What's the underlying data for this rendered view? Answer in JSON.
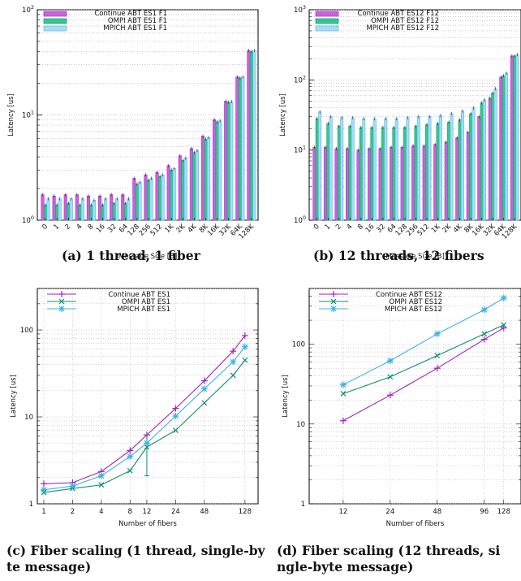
{
  "chart_data": [
    {
      "type": "bar",
      "caption": "(a) 1 thread, 1 fiber",
      "ylabel": "Latency [us]",
      "xlabel": "Message Size [B]",
      "yscale": "log",
      "ylim": [
        1,
        100
      ],
      "yticks": [
        {
          "value": 1,
          "base": "10",
          "exp": "0"
        },
        {
          "value": 10,
          "base": "10",
          "exp": "1"
        },
        {
          "value": 100,
          "base": "10",
          "exp": "2"
        }
      ],
      "categories": [
        "0",
        "1",
        "2",
        "4",
        "8",
        "16",
        "32",
        "64",
        "128",
        "256",
        "512",
        "1K",
        "2K",
        "4K",
        "8K",
        "16K",
        "32K",
        "64K",
        "128K"
      ],
      "colors": [
        "#a53ac7",
        "#1a9e6e",
        "#5bb8e6"
      ],
      "fills": [
        "#cf5fdf",
        "#36c78e",
        "#a8dcf5"
      ],
      "series": [
        {
          "name": "Continue ABT ES1 F1",
          "values": [
            1.75,
            1.7,
            1.75,
            1.75,
            1.7,
            1.7,
            1.75,
            1.75,
            2.5,
            2.7,
            2.85,
            3.3,
            4.1,
            4.8,
            6.3,
            9.0,
            13.5,
            23.0,
            41.0
          ]
        },
        {
          "name": "OMPI ABT ES1 F1",
          "values": [
            1.4,
            1.4,
            1.45,
            1.4,
            1.4,
            1.4,
            1.45,
            1.45,
            2.2,
            2.4,
            2.6,
            3.0,
            3.7,
            4.4,
            5.9,
            8.6,
            13.2,
            22.5,
            40.0
          ]
        },
        {
          "name": "MPICH ABT ES1 F1",
          "values": [
            1.6,
            1.6,
            1.6,
            1.6,
            1.55,
            1.6,
            1.6,
            1.6,
            2.3,
            2.5,
            2.7,
            3.1,
            3.9,
            4.6,
            6.1,
            8.8,
            13.4,
            23.0,
            41.0
          ]
        }
      ]
    },
    {
      "type": "bar",
      "caption": "(b) 12 threads, 12 fibers",
      "ylabel": "Latency [us]",
      "xlabel": "Message Size [B]",
      "yscale": "log",
      "ylim": [
        1,
        1000
      ],
      "yticks": [
        {
          "value": 1,
          "base": "10",
          "exp": "0"
        },
        {
          "value": 10,
          "base": "10",
          "exp": "1"
        },
        {
          "value": 100,
          "base": "10",
          "exp": "2"
        },
        {
          "value": 1000,
          "base": "10",
          "exp": "3"
        }
      ],
      "categories": [
        "0",
        "1",
        "2",
        "4",
        "8",
        "16",
        "32",
        "64",
        "128",
        "256",
        "512",
        "1K",
        "2K",
        "4K",
        "8K",
        "16K",
        "32K",
        "64K",
        "128K"
      ],
      "colors": [
        "#a53ac7",
        "#1a9e6e",
        "#5bb8e6"
      ],
      "fills": [
        "#cf5fdf",
        "#36c78e",
        "#a8dcf5"
      ],
      "series": [
        {
          "name": "Continue ABT ES12 F12",
          "values": [
            11,
            11,
            10.5,
            10.5,
            10,
            10.5,
            10.5,
            11,
            11,
            11.5,
            11.5,
            12,
            13,
            15,
            18,
            30,
            55,
            110,
            220
          ]
        },
        {
          "name": "OMPI ABT ES12 F12",
          "values": [
            28,
            24,
            22,
            22,
            21,
            21,
            21,
            21,
            21,
            22,
            23,
            24,
            25,
            27,
            33,
            47,
            65,
            115,
            220
          ]
        },
        {
          "name": "MPICH ABT ES12 F12",
          "values": [
            35,
            30,
            29,
            29,
            28,
            28,
            28,
            28,
            29,
            30,
            30,
            31,
            33,
            36,
            40,
            52,
            75,
            125,
            230
          ]
        }
      ]
    },
    {
      "type": "line",
      "caption": "(c) Fiber scaling (1 thread, single-byte message)",
      "ylabel": "Latency [us]",
      "xlabel": "Number of fibers",
      "yscale": "log",
      "xscale": "log2",
      "ylim": [
        1,
        300
      ],
      "xlim": [
        1,
        150
      ],
      "grid": true,
      "legend_position": "top-left",
      "xticks": [
        1,
        2,
        4,
        8,
        12,
        24,
        48,
        128
      ],
      "yticks": [
        {
          "value": 1,
          "label": "1"
        },
        {
          "value": 10,
          "label": "10"
        },
        {
          "value": 100,
          "label": "100"
        }
      ],
      "series": [
        {
          "name": "Continue ABT ES1",
          "color": "#a020c0",
          "marker": "+",
          "x": [
            1,
            2,
            4,
            8,
            12,
            24,
            48,
            96,
            128
          ],
          "y": [
            1.7,
            1.75,
            2.35,
            4.1,
            6.2,
            12.5,
            26,
            57,
            86
          ]
        },
        {
          "name": "OMPI ABT ES1",
          "color": "#0e8f6a",
          "marker": "x",
          "x": [
            1,
            2,
            4,
            8,
            12,
            24,
            48,
            96,
            128
          ],
          "y": [
            1.35,
            1.5,
            1.65,
            2.4,
            4.5,
            7,
            14.5,
            30,
            45
          ],
          "error_at": 12,
          "error_range": [
            2.1,
            6.5
          ]
        },
        {
          "name": "MPICH ABT ES1",
          "color": "#3db1e6",
          "marker": "*",
          "x": [
            1,
            2,
            4,
            8,
            12,
            24,
            48,
            96,
            128
          ],
          "y": [
            1.45,
            1.6,
            2.1,
            3.5,
            5,
            10.2,
            21,
            43,
            64
          ]
        }
      ]
    },
    {
      "type": "line",
      "caption": "(d) Fiber scaling (12 threads, single-byte message)",
      "ylabel": "Latency [us]",
      "xlabel": "Number of fibers",
      "yscale": "log",
      "xscale": "log2",
      "ylim": [
        1,
        500
      ],
      "xlim": [
        8,
        150
      ],
      "grid": true,
      "legend_position": "top-left",
      "xticks": [
        12,
        24,
        48,
        96,
        128
      ],
      "yticks": [
        {
          "value": 1,
          "label": "1"
        },
        {
          "value": 10,
          "label": "10"
        },
        {
          "value": 100,
          "label": "100"
        }
      ],
      "series": [
        {
          "name": "Continue ABT ES12",
          "color": "#a020c0",
          "marker": "+",
          "x": [
            12,
            24,
            48,
            96,
            128
          ],
          "y": [
            11,
            23,
            50,
            115,
            160
          ]
        },
        {
          "name": "OMPI ABT ES12",
          "color": "#0e8f6a",
          "marker": "x",
          "x": [
            12,
            24,
            48,
            96,
            128
          ],
          "y": [
            24,
            39,
            72,
            135,
            175
          ]
        },
        {
          "name": "MPICH ABT ES12",
          "color": "#3db1e6",
          "marker": "*",
          "x": [
            12,
            24,
            48,
            96,
            128
          ],
          "y": [
            31,
            62,
            135,
            270,
            380
          ]
        }
      ]
    }
  ]
}
